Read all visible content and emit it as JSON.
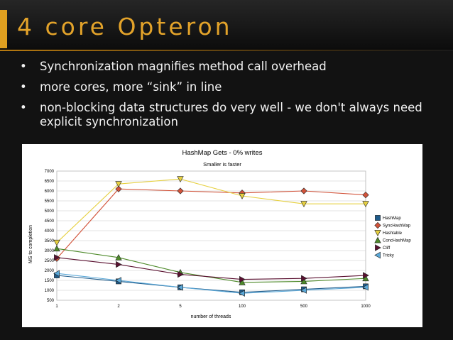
{
  "slide": {
    "title": "4 core Opteron",
    "bullet_symbol": "•",
    "bullets": [
      "Synchronization magnifies method call overhead",
      "more cores, more “sink” in line",
      "non-blocking data structures do very well  - we don't always need explicit synchronization"
    ]
  },
  "chart_data": {
    "type": "line",
    "title": "HashMap Gets - 0% writes",
    "subtitle": "Smaller is faster",
    "xlabel": "number of threads",
    "ylabel": "MS to completion",
    "categories": [
      "1",
      "2",
      "5",
      "100",
      "500",
      "1000"
    ],
    "ylim": [
      500,
      7000
    ],
    "yticks": [
      500,
      1000,
      1500,
      2000,
      2500,
      3000,
      3500,
      4000,
      4500,
      5000,
      5500,
      6000,
      6500,
      7000
    ],
    "legend_position": "right",
    "series": [
      {
        "name": "HashMap",
        "color": "#1f5b8a",
        "marker": "square",
        "values": [
          1750,
          1450,
          1150,
          900,
          1050,
          1200
        ]
      },
      {
        "name": "SyncHashMap",
        "color": "#d2533a",
        "marker": "diamond",
        "values": [
          2600,
          6100,
          6000,
          5900,
          6000,
          5800
        ]
      },
      {
        "name": "Hashtable",
        "color": "#e6d040",
        "marker": "triangle-down",
        "values": [
          3400,
          6350,
          6600,
          5750,
          5350,
          5350
        ]
      },
      {
        "name": "ConcHashMap",
        "color": "#4e8a2a",
        "marker": "triangle-up",
        "values": [
          3100,
          2650,
          1900,
          1400,
          1450,
          1600
        ]
      },
      {
        "name": "Cliff",
        "color": "#5a1030",
        "marker": "triangle-right",
        "values": [
          2650,
          2300,
          1800,
          1550,
          1600,
          1750
        ]
      },
      {
        "name": "Tricky",
        "color": "#5aa8d8",
        "marker": "triangle-left",
        "values": [
          1850,
          1500,
          1150,
          850,
          1000,
          1150
        ]
      }
    ]
  }
}
